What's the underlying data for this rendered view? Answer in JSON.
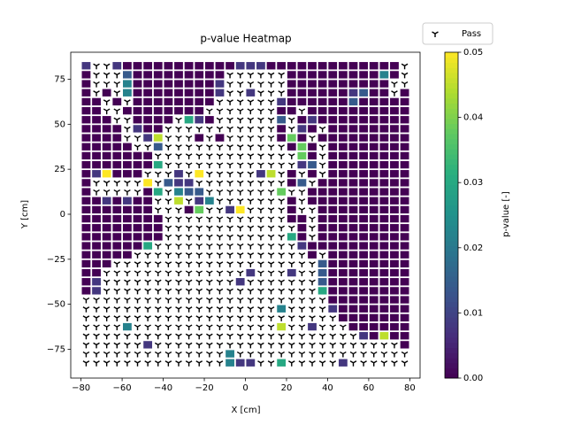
{
  "chart_data": {
    "type": "heatmap",
    "title": "p-value Heatmap",
    "x_label": "X [cm]",
    "y_label": "Y [cm]",
    "xlim": [
      -85,
      85
    ],
    "ylim": [
      -91,
      90
    ],
    "xticks": [
      {
        "value": -80,
        "label": "−80"
      },
      {
        "value": -60,
        "label": "−60"
      },
      {
        "value": -40,
        "label": "−40"
      },
      {
        "value": -20,
        "label": "−20"
      },
      0,
      20,
      40,
      60,
      80
    ],
    "yticks": [
      {
        "value": -75,
        "label": "−75"
      },
      {
        "value": -50,
        "label": "−50"
      },
      {
        "value": -25,
        "label": "−25"
      },
      0,
      25,
      50,
      75
    ],
    "x": [
      -77.5,
      -72.5,
      -67.5,
      -62.5,
      -57.5,
      -52.5,
      -47.5,
      -42.5,
      -37.5,
      -32.5,
      -27.5,
      -22.5,
      -17.5,
      -12.5,
      -7.5,
      -2.5,
      2.5,
      7.5,
      12.5,
      17.5,
      22.5,
      27.5,
      32.5,
      37.5,
      42.5,
      47.5,
      52.5,
      57.5,
      62.5,
      67.5,
      72.5,
      77.5
    ],
    "y": [
      82.5,
      77.5,
      72.5,
      67.5,
      62.5,
      57.5,
      52.5,
      47.5,
      42.5,
      37.5,
      32.5,
      27.5,
      22.5,
      17.5,
      12.5,
      7.5,
      2.5,
      -2.5,
      -7.5,
      -12.5,
      -17.5,
      -22.5,
      -27.5,
      -32.5,
      -37.5,
      -42.5,
      -47.5,
      -52.5,
      -57.5,
      -62.5,
      -67.5,
      -72.5,
      -77.5,
      -82.5
    ],
    "z": [
      [
        0.008,
        null,
        null,
        0.008,
        0,
        0,
        0,
        0,
        0,
        0,
        0,
        0,
        0,
        0,
        0,
        0.008,
        0.008,
        0.008,
        0,
        0,
        0,
        0,
        0,
        0,
        0,
        0,
        0,
        0,
        0,
        0,
        0,
        null
      ],
      [
        0,
        null,
        null,
        null,
        0.014,
        0,
        0,
        0,
        0,
        0,
        0,
        0,
        0,
        0,
        null,
        null,
        null,
        null,
        null,
        null,
        0,
        0,
        0,
        0,
        0,
        0,
        0,
        0,
        0,
        0.022,
        0,
        null
      ],
      [
        0,
        null,
        null,
        null,
        0.022,
        0,
        0,
        0,
        0,
        0,
        0,
        0,
        0,
        0.008,
        null,
        null,
        null,
        null,
        null,
        null,
        0,
        0,
        0,
        0,
        0,
        0,
        0,
        0,
        0,
        0,
        null,
        null
      ],
      [
        0,
        null,
        0,
        null,
        0.022,
        0,
        0,
        0,
        0,
        0,
        0,
        0,
        0,
        0.008,
        null,
        null,
        0.008,
        null,
        null,
        null,
        0,
        0,
        0,
        0,
        0,
        0,
        0.008,
        0.014,
        0,
        0,
        null,
        0
      ],
      [
        0,
        0,
        null,
        0,
        null,
        0,
        0,
        0,
        0,
        0,
        0,
        0,
        0,
        null,
        null,
        null,
        null,
        null,
        null,
        0.008,
        0,
        0,
        0,
        0,
        0,
        0,
        0.014,
        0,
        0,
        0,
        0,
        0
      ],
      [
        0,
        0,
        null,
        null,
        0,
        0,
        0,
        0,
        0,
        0,
        0,
        0,
        null,
        null,
        null,
        null,
        null,
        null,
        null,
        0,
        0,
        null,
        0,
        0,
        0,
        0,
        0,
        0,
        0,
        0,
        0,
        0
      ],
      [
        0,
        0,
        0,
        null,
        null,
        0,
        0,
        0,
        0,
        null,
        0.03,
        0.008,
        0,
        null,
        null,
        null,
        null,
        null,
        null,
        0.014,
        null,
        0,
        0.008,
        0,
        0,
        0,
        0,
        0,
        0,
        0,
        0,
        0
      ],
      [
        0,
        0,
        0,
        0,
        null,
        0.008,
        0,
        0,
        null,
        null,
        null,
        null,
        null,
        null,
        null,
        null,
        null,
        null,
        null,
        0,
        null,
        0.008,
        0,
        null,
        0,
        0,
        0,
        0,
        0,
        0,
        0,
        0
      ],
      [
        0,
        0,
        0,
        0,
        null,
        null,
        0.008,
        0.045,
        null,
        null,
        null,
        0,
        null,
        0,
        null,
        null,
        null,
        null,
        null,
        0,
        0.038,
        0,
        null,
        0,
        0,
        0,
        0,
        0,
        0,
        0,
        0,
        0
      ],
      [
        0,
        0,
        0,
        0,
        0,
        null,
        null,
        0.014,
        null,
        null,
        null,
        null,
        null,
        null,
        null,
        null,
        null,
        null,
        null,
        null,
        0,
        0.038,
        0,
        null,
        0,
        0,
        0,
        0,
        0,
        0,
        0,
        0
      ],
      [
        0,
        0,
        0,
        0,
        0,
        0,
        0,
        null,
        null,
        null,
        null,
        null,
        null,
        null,
        null,
        null,
        null,
        null,
        null,
        null,
        null,
        0.038,
        0,
        null,
        0,
        0,
        0,
        0,
        0,
        0,
        0,
        0
      ],
      [
        0,
        0,
        0,
        0,
        0,
        0,
        0,
        0.03,
        null,
        null,
        null,
        null,
        null,
        null,
        null,
        null,
        null,
        null,
        null,
        null,
        null,
        0.008,
        0.014,
        null,
        0,
        0,
        0,
        0,
        0,
        0,
        0,
        0
      ],
      [
        0,
        0.008,
        0.05,
        0,
        0,
        0,
        null,
        null,
        null,
        0.008,
        null,
        0.05,
        null,
        null,
        null,
        null,
        null,
        0.008,
        0.045,
        null,
        0,
        null,
        0,
        null,
        0,
        0,
        0,
        0,
        0,
        0,
        0,
        0
      ],
      [
        0,
        null,
        null,
        null,
        null,
        null,
        0.05,
        null,
        0.014,
        0.008,
        0.008,
        null,
        null,
        null,
        null,
        null,
        null,
        null,
        null,
        null,
        0,
        0.014,
        null,
        0,
        0,
        0,
        0,
        0,
        0,
        0,
        0,
        0
      ],
      [
        0,
        null,
        null,
        null,
        null,
        null,
        0,
        0.03,
        null,
        0.022,
        0.014,
        0.014,
        null,
        null,
        null,
        null,
        null,
        null,
        null,
        0.038,
        null,
        null,
        0,
        0,
        0,
        0,
        0,
        0,
        0,
        0,
        0,
        0
      ],
      [
        0,
        0,
        0.008,
        0,
        0.008,
        0,
        0,
        null,
        null,
        0.045,
        null,
        0.008,
        0.022,
        null,
        null,
        null,
        null,
        null,
        null,
        null,
        0,
        null,
        0,
        0,
        0,
        0,
        0,
        0,
        0,
        0,
        0,
        0
      ],
      [
        0,
        0,
        0,
        0,
        0,
        0,
        0,
        null,
        null,
        null,
        0,
        0.038,
        null,
        null,
        0.008,
        0.05,
        null,
        null,
        null,
        null,
        0,
        null,
        null,
        0,
        0,
        0,
        0,
        0,
        0,
        0,
        0,
        0
      ],
      [
        0,
        0,
        0,
        0,
        0,
        0,
        0,
        0,
        null,
        null,
        null,
        null,
        null,
        null,
        null,
        null,
        null,
        null,
        null,
        null,
        0,
        0,
        null,
        0,
        0,
        0,
        0,
        0,
        0,
        0,
        0,
        0
      ],
      [
        0,
        0,
        0,
        0,
        0,
        0,
        0,
        0,
        null,
        null,
        null,
        null,
        null,
        null,
        null,
        null,
        null,
        null,
        null,
        null,
        null,
        0,
        null,
        0,
        0,
        0,
        0,
        0,
        0,
        0,
        0,
        0
      ],
      [
        0,
        0,
        0,
        0,
        0,
        0,
        0,
        0,
        null,
        null,
        null,
        null,
        null,
        null,
        null,
        null,
        null,
        null,
        null,
        null,
        0.03,
        0,
        null,
        0,
        0,
        0,
        0,
        0,
        0,
        0,
        0,
        0
      ],
      [
        0,
        0,
        0,
        0,
        0,
        0,
        0.03,
        null,
        null,
        null,
        null,
        null,
        null,
        null,
        null,
        null,
        null,
        null,
        null,
        null,
        null,
        0.008,
        0,
        0,
        0,
        0,
        0,
        0,
        0,
        0,
        0,
        0
      ],
      [
        0,
        0,
        0,
        0,
        0,
        null,
        null,
        null,
        null,
        null,
        null,
        null,
        null,
        null,
        null,
        null,
        null,
        null,
        null,
        null,
        null,
        null,
        0,
        null,
        0,
        0,
        0,
        0,
        0,
        0,
        0,
        0
      ],
      [
        0,
        0,
        0,
        null,
        null,
        null,
        null,
        null,
        null,
        null,
        null,
        null,
        null,
        null,
        null,
        null,
        null,
        null,
        null,
        null,
        null,
        null,
        null,
        0.014,
        0,
        0,
        0,
        0,
        0,
        0,
        0,
        0
      ],
      [
        0,
        0,
        null,
        null,
        null,
        null,
        null,
        null,
        null,
        null,
        null,
        null,
        null,
        null,
        null,
        null,
        0.008,
        null,
        null,
        null,
        0.008,
        null,
        null,
        0.014,
        0,
        0,
        0,
        0,
        0,
        0,
        0,
        0
      ],
      [
        0,
        0.008,
        null,
        null,
        null,
        null,
        null,
        null,
        null,
        null,
        null,
        null,
        null,
        null,
        null,
        0.008,
        null,
        null,
        null,
        null,
        null,
        null,
        null,
        0.014,
        0,
        0,
        0,
        0,
        0,
        0,
        0,
        0
      ],
      [
        0,
        0.008,
        null,
        null,
        null,
        null,
        null,
        null,
        null,
        null,
        null,
        null,
        null,
        null,
        null,
        null,
        null,
        null,
        null,
        null,
        null,
        null,
        null,
        0.03,
        0,
        0,
        0,
        0,
        0,
        0,
        0,
        0
      ],
      [
        null,
        null,
        null,
        null,
        null,
        null,
        null,
        null,
        null,
        null,
        null,
        null,
        null,
        null,
        null,
        null,
        null,
        null,
        null,
        null,
        null,
        null,
        null,
        null,
        0,
        0,
        0,
        0,
        0,
        0,
        0,
        0
      ],
      [
        null,
        null,
        null,
        null,
        null,
        null,
        null,
        null,
        null,
        null,
        null,
        null,
        null,
        null,
        null,
        null,
        null,
        null,
        null,
        0.022,
        null,
        null,
        null,
        null,
        0.008,
        0,
        0,
        0,
        0,
        0,
        0,
        0
      ],
      [
        null,
        null,
        null,
        null,
        null,
        null,
        null,
        null,
        null,
        null,
        null,
        null,
        null,
        null,
        null,
        null,
        null,
        null,
        null,
        null,
        null,
        null,
        null,
        null,
        null,
        0,
        0,
        0,
        0,
        0,
        0,
        0
      ],
      [
        null,
        null,
        null,
        null,
        0.022,
        null,
        null,
        null,
        null,
        null,
        null,
        null,
        null,
        null,
        null,
        null,
        null,
        null,
        null,
        0.045,
        null,
        null,
        0.008,
        null,
        null,
        null,
        0,
        0,
        0,
        0,
        0,
        0
      ],
      [
        null,
        null,
        null,
        null,
        null,
        null,
        null,
        null,
        null,
        null,
        null,
        null,
        null,
        null,
        null,
        null,
        null,
        null,
        null,
        null,
        null,
        null,
        null,
        null,
        null,
        null,
        null,
        0.008,
        0,
        0.045,
        0,
        0
      ],
      [
        null,
        null,
        null,
        null,
        null,
        null,
        0.008,
        null,
        null,
        null,
        null,
        null,
        null,
        null,
        null,
        null,
        null,
        null,
        null,
        null,
        null,
        null,
        null,
        null,
        null,
        null,
        null,
        null,
        null,
        null,
        null,
        0
      ],
      [
        null,
        null,
        null,
        null,
        null,
        null,
        null,
        null,
        null,
        null,
        null,
        null,
        null,
        null,
        0.022,
        null,
        null,
        null,
        null,
        null,
        null,
        null,
        null,
        null,
        null,
        null,
        null,
        null,
        null,
        null,
        null,
        null
      ],
      [
        null,
        null,
        null,
        null,
        null,
        null,
        null,
        null,
        null,
        null,
        null,
        null,
        null,
        null,
        0.022,
        0.008,
        0.008,
        null,
        null,
        0.03,
        null,
        null,
        null,
        null,
        null,
        0.008,
        null,
        null,
        null,
        null,
        null,
        null
      ]
    ],
    "pass_label": "Pass",
    "pass_color": "#000000",
    "colorbar": {
      "label": "p-value [-]",
      "colormap": "viridis",
      "lim": [
        0,
        0.05
      ],
      "ticks": [
        {
          "value": 0,
          "label": "0.00"
        },
        {
          "value": 0.01,
          "label": "0.01"
        },
        {
          "value": 0.02,
          "label": "0.02"
        },
        {
          "value": 0.03,
          "label": "0.03"
        },
        {
          "value": 0.04,
          "label": "0.04"
        },
        {
          "value": 0.05,
          "label": "0.05"
        }
      ]
    }
  }
}
